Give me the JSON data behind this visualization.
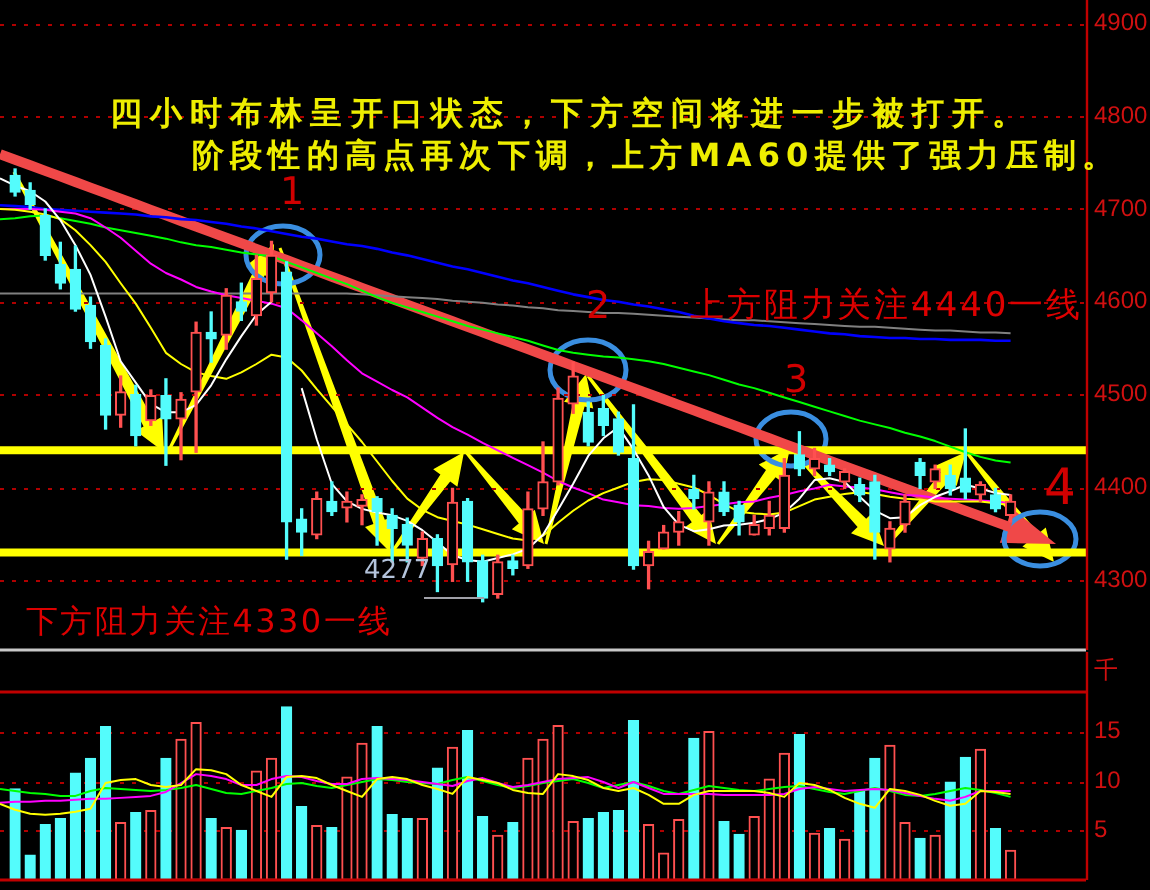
{
  "chart_data": [
    {
      "type": "candlestick",
      "categories": [
        null,
        null,
        null,
        null,
        null,
        null,
        null,
        null,
        null,
        null,
        null,
        null,
        null,
        null,
        null,
        null,
        null,
        null,
        null,
        null,
        null,
        null,
        null,
        null,
        null,
        null,
        null,
        null,
        null,
        null,
        null,
        null,
        null,
        null,
        null,
        null,
        null,
        null,
        null,
        null,
        null,
        null,
        null,
        null,
        null,
        null,
        null,
        null,
        null,
        null,
        null,
        null,
        null,
        null,
        null,
        null,
        null,
        null,
        null,
        null,
        null,
        null,
        null,
        null,
        null,
        null,
        null,
        null,
        null,
        null,
        null,
        null,
        null
      ],
      "ohlc": [
        null,
        [
          4736,
          4743,
          4714,
          4718
        ],
        [
          4720,
          4728,
          4700,
          4705
        ],
        [
          4693,
          4700,
          4645,
          4650
        ],
        [
          4640,
          4664,
          4614,
          4620
        ],
        [
          4635,
          4660,
          4590,
          4592
        ],
        [
          4596,
          4605,
          4550,
          4557
        ],
        [
          4553,
          4560,
          4463,
          4478
        ],
        [
          4478,
          4520,
          4465,
          4503
        ],
        [
          4500,
          4510,
          4445,
          4456
        ],
        [
          4472,
          4505,
          4467,
          4499
        ],
        [
          4499,
          4517,
          4424,
          4474
        ],
        [
          4474,
          4502,
          4430,
          4495
        ],
        [
          4503,
          4578,
          4438,
          4567
        ],
        [
          4567,
          4589,
          4535,
          4560
        ],
        [
          4564,
          4614,
          4549,
          4607
        ],
        [
          4600,
          4620,
          4580,
          4590
        ],
        [
          4585,
          4650,
          4575,
          4625
        ],
        [
          4610,
          4665,
          4600,
          4650
        ],
        [
          4632,
          4643,
          4323,
          4363
        ],
        [
          4366,
          4377,
          4327,
          4352
        ],
        [
          4349,
          4395,
          4345,
          4388
        ],
        [
          4385,
          4406,
          4370,
          4374
        ],
        [
          4378,
          4395,
          4363,
          4385
        ],
        [
          4380,
          4392,
          4360,
          4387
        ],
        [
          4388,
          4390,
          4338,
          4374
        ],
        [
          4370,
          4377,
          4320,
          4356
        ],
        [
          4360,
          4367,
          4320,
          4338
        ],
        [
          4324,
          4352,
          4316,
          4345
        ],
        [
          4345,
          4349,
          4288,
          4316
        ],
        [
          4317,
          4399,
          4299,
          4384
        ],
        [
          4385,
          4388,
          4299,
          4320
        ],
        [
          4321,
          4327,
          4277,
          4281
        ],
        [
          4285,
          4327,
          4281,
          4320
        ],
        [
          4321,
          4327,
          4306,
          4313
        ],
        [
          4316,
          4395,
          4313,
          4377
        ],
        [
          4377,
          4449,
          4370,
          4406
        ],
        [
          4406,
          4507,
          4403,
          4496
        ],
        [
          4490,
          4535,
          4480,
          4520
        ],
        [
          4481,
          4492,
          4445,
          4449
        ],
        [
          4485,
          4499,
          4456,
          4467
        ],
        [
          4474,
          4481,
          4435,
          4438
        ],
        [
          4431,
          4489,
          4312,
          4316
        ],
        [
          4316,
          4342,
          4291,
          4331
        ],
        [
          4334,
          4359,
          4334,
          4352
        ],
        [
          4352,
          4374,
          4338,
          4363
        ],
        [
          4398,
          4413,
          4377,
          4388
        ],
        [
          4363,
          4406,
          4338,
          4395
        ],
        [
          4395,
          4406,
          4370,
          4374
        ],
        [
          4381,
          4385,
          4349,
          4363
        ],
        [
          4349,
          4370,
          4349,
          4360
        ],
        [
          4356,
          4385,
          4349,
          4370
        ],
        [
          4356,
          4431,
          4352,
          4413
        ],
        [
          4435,
          4460,
          4413,
          4420
        ],
        [
          4420,
          4442,
          4413,
          4431
        ],
        [
          4424,
          4431,
          4413,
          4417
        ],
        [
          4406,
          4420,
          4399,
          4417
        ],
        [
          4403,
          4410,
          4385,
          4392
        ],
        [
          4406,
          4413,
          4323,
          4352
        ],
        [
          4334,
          4363,
          4320,
          4356
        ],
        [
          4360,
          4392,
          4352,
          4385
        ],
        [
          4427,
          4431,
          4399,
          4413
        ],
        [
          4406,
          4424,
          4399,
          4420
        ],
        [
          4413,
          4424,
          4392,
          4399
        ],
        [
          4410,
          4463,
          4388,
          4395
        ],
        [
          4392,
          4406,
          4385,
          4403
        ],
        [
          4392,
          4399,
          4374,
          4377
        ],
        [
          4370,
          4392,
          4363,
          4385
        ],
        null,
        null,
        null,
        null,
        null
      ],
      "colors": [
        null,
        "#54fcfc",
        "#54fcfc",
        "#54fcfc",
        "#54fcfc",
        "#54fcfc",
        "#54fcfc",
        "#54fcfc",
        "#ff5050",
        "#54fcfc",
        "#ff5050",
        "#54fcfc",
        "#ff5050",
        "#ff5050",
        "#54fcfc",
        "#ff5050",
        "#54fcfc",
        "#ff5050",
        "#ff5050",
        "#54fcfc",
        "#54fcfc",
        "#ff5050",
        "#54fcfc",
        "#ff5050",
        "#ff5050",
        "#54fcfc",
        "#54fcfc",
        "#54fcfc",
        "#ff5050",
        "#54fcfc",
        "#ff5050",
        "#54fcfc",
        "#54fcfc",
        "#ff5050",
        "#54fcfc",
        "#ff5050",
        "#ff5050",
        "#ff5050",
        "#ff5050",
        "#54fcfc",
        "#54fcfc",
        "#54fcfc",
        "#54fcfc",
        "#ff5050",
        "#ff5050",
        "#ff5050",
        "#54fcfc",
        "#ff5050",
        "#54fcfc",
        "#54fcfc",
        "#ff5050",
        "#ff5050",
        "#ff5050",
        "#54fcfc",
        "#ff5050",
        "#54fcfc",
        "#ff5050",
        "#54fcfc",
        "#54fcfc",
        "#ff5050",
        "#ff5050",
        "#54fcfc",
        "#ff5050",
        "#54fcfc",
        "#54fcfc",
        "#ff5050",
        "#54fcfc",
        "#ff5050",
        null,
        null,
        null,
        null,
        null
      ],
      "series": [
        {
          "type": "line",
          "color": "#ffffff",
          "values": [
            4733,
            4725,
            4719,
            4708,
            4688,
            4661,
            4629,
            4584,
            4536,
            4513,
            4490,
            4481,
            4481,
            4489,
            4510,
            4538,
            4563,
            4586,
            4600,
            null,
            4507,
            4452,
            4404,
            4385,
            4377,
            4373,
            4370,
            4364,
            4354,
            4341,
            4327,
            4322,
            4320,
            4324,
            4328,
            4334,
            4349,
            4376,
            4404,
            4434,
            4453,
            4465,
            4441,
            4413,
            4379,
            4360,
            4353,
            4355,
            4359,
            4360,
            4362,
            4366,
            4373,
            4388,
            4408,
            4410,
            4406,
            4390,
            4375,
            4367,
            4368,
            4381,
            4390,
            4396,
            4403,
            4399,
            4394,
            4392,
            null,
            null,
            null,
            null,
            null
          ]
        },
        {
          "type": "line",
          "color": "#ffff00",
          "values": [
            4700,
            4699,
            4697,
            4694,
            4689,
            4677,
            4661,
            4643,
            4620,
            4598,
            4572,
            4545,
            4533,
            4524,
            4520,
            4517,
            4524,
            4533,
            4543,
            4540,
            4526,
            4506,
            4487,
            4468,
            4449,
            4428,
            4407,
            4388,
            4376,
            4368,
            4364,
            4360,
            4355,
            4350,
            4345,
            4343,
            4348,
            4362,
            4375,
            4386,
            4394,
            4400,
            4406,
            4409,
            4408,
            4404,
            4400,
            4392,
            4382,
            4374,
            4372,
            4371,
            4373,
            4380,
            4387,
            4390,
            4393,
            4395,
            4393,
            4390,
            4388,
            4387,
            4385,
            4385,
            4385,
            4385,
            4383,
            4381,
            null,
            null,
            null,
            null,
            null
          ]
        },
        {
          "type": "line",
          "color": "#ff00ff",
          "values": [
            4700,
            4700,
            4700,
            4699,
            4697,
            4695,
            4690,
            4680,
            4669,
            4655,
            4641,
            4631,
            4624,
            4616,
            4611,
            4607,
            4604,
            4601,
            4598,
            4593,
            4580,
            4566,
            4552,
            4537,
            4523,
            4514,
            4505,
            4497,
            4486,
            4475,
            4465,
            4457,
            4448,
            4440,
            4432,
            4424,
            4416,
            4407,
            4400,
            4394,
            4387,
            4384,
            4381,
            4380,
            4378,
            4377,
            4378,
            4380,
            4382,
            4384,
            4385,
            4389,
            4392,
            4396,
            4399,
            4403,
            4401,
            4400,
            4398,
            4395,
            4392,
            4391,
            4389,
            4388,
            4387,
            4386,
            4385,
            4383,
            null,
            null,
            null,
            null,
            null
          ]
        },
        {
          "type": "line",
          "color": "#00ff00",
          "values": [
            4689,
            4690,
            4692,
            4693,
            4690,
            4687,
            4684,
            4680,
            4677,
            4674,
            4671,
            4668,
            4664,
            4661,
            4659,
            4656,
            4653,
            4651,
            4649,
            4643,
            4637,
            4631,
            4625,
            4619,
            4612,
            4605,
            4599,
            4594,
            4589,
            4584,
            4579,
            4574,
            4570,
            4566,
            4562,
            4558,
            4553,
            4548,
            4545,
            4543,
            4541,
            4540,
            4538,
            4536,
            4533,
            4529,
            4525,
            4521,
            4516,
            4511,
            4507,
            4502,
            4497,
            4492,
            4487,
            4482,
            4477,
            4472,
            4468,
            4464,
            4459,
            4455,
            4450,
            4444,
            4438,
            4433,
            4429,
            4427,
            null,
            null,
            null,
            null,
            null
          ]
        },
        {
          "type": "line",
          "color": "#0000ff",
          "values": [
            4704,
            4703,
            4702,
            4700,
            4699,
            4698,
            4697,
            4696,
            4695,
            4694,
            4692,
            4691,
            4689,
            4688,
            4686,
            4684,
            4681,
            4679,
            4676,
            4673,
            4670,
            4668,
            4665,
            4662,
            4660,
            4657,
            4653,
            4650,
            4646,
            4642,
            4638,
            4635,
            4631,
            4627,
            4623,
            4620,
            4616,
            4612,
            4608,
            4605,
            4602,
            4600,
            4597,
            4595,
            4592,
            4589,
            4585,
            4582,
            4579,
            4577,
            4575,
            4574,
            4572,
            4570,
            4568,
            4566,
            4565,
            4563,
            4562,
            4561,
            4561,
            4560,
            4560,
            4559,
            4559,
            4559,
            4558,
            4558,
            null,
            null,
            null,
            null,
            null
          ]
        },
        {
          "type": "line",
          "color": "#808080",
          "values": [
            4609,
            4609,
            4609,
            4609,
            4609,
            4609,
            4609,
            4609,
            4609,
            4609,
            4609,
            4609,
            4609,
            4609,
            4609,
            4609,
            4609,
            4609,
            4609,
            4609,
            4609,
            4609,
            4609,
            4609,
            4608,
            4607,
            4606,
            4605,
            4604,
            4603,
            4601,
            4600,
            4599,
            4597,
            4596,
            4594,
            4593,
            4591,
            4590,
            4589,
            4588,
            4588,
            4587,
            4586,
            4585,
            4584,
            4583,
            4582,
            4581,
            4580,
            4580,
            4579,
            4578,
            4577,
            4576,
            4575,
            4574,
            4573,
            4573,
            4572,
            4571,
            4570,
            4569,
            4569,
            4568,
            4567,
            4567,
            4566,
            null,
            null,
            null,
            null,
            null
          ]
        },
        {
          "type": "line",
          "color": "#f04848",
          "values": [
            4759,
            4753,
            4747,
            4741,
            4735,
            4729,
            4723,
            4717,
            4711,
            4705,
            4699,
            4693,
            4687,
            4681,
            4675,
            4669,
            4663,
            4657,
            4651,
            4645,
            4639,
            4633,
            4627,
            4621,
            4615,
            4609,
            4603,
            4597,
            4591,
            4585,
            4579,
            4573,
            4567,
            4561,
            4555,
            4549,
            4543,
            4537,
            4531,
            4525,
            4519,
            4513,
            4507,
            4501,
            4495,
            4489,
            4483,
            4477,
            4471,
            4465,
            4459,
            4453,
            4447,
            4441,
            4435,
            4429,
            4423,
            4417,
            4411,
            4405,
            4399,
            4393,
            4387,
            4381,
            4375,
            4369,
            4363,
            4357,
            null,
            null,
            null,
            null,
            null
          ]
        }
      ],
      "ylim": [
        4225,
        4925
      ],
      "yticks": [
        4300,
        4400,
        4500,
        4600,
        4700,
        4800,
        4900
      ],
      "grid": "y",
      "tick_labels": "y",
      "ref_lines": [
        {
          "axis": "y",
          "value": 4440,
          "color": "#ffff00"
        },
        {
          "axis": "y",
          "value": 4330,
          "color": "#ffff00"
        }
      ],
      "annotations": [
        "四小时布林呈开口状态，下方空间将进一步被打开。",
        "阶段性的高点再次下调，上方MA60提供了强力压制。",
        "1",
        "2",
        "3",
        "4",
        "上方阻力关注4440一线",
        "下方阻力关注4330一线",
        "4277"
      ]
    },
    {
      "type": "bar",
      "categories": [
        null,
        null,
        null,
        null,
        null,
        null,
        null,
        null,
        null,
        null,
        null,
        null,
        null,
        null,
        null,
        null,
        null,
        null,
        null,
        null,
        null,
        null,
        null,
        null,
        null,
        null,
        null,
        null,
        null,
        null,
        null,
        null,
        null,
        null,
        null,
        null,
        null,
        null,
        null,
        null,
        null,
        null,
        null,
        null,
        null,
        null,
        null,
        null,
        null,
        null,
        null,
        null,
        null,
        null,
        null,
        null,
        null,
        null,
        null,
        null,
        null,
        null,
        null,
        null,
        null,
        null,
        null,
        null,
        null,
        null,
        null,
        null,
        null
      ],
      "series": [
        {
          "type": "bar",
          "colors": [
            null,
            "#54fcfc",
            "#54fcfc",
            "#54fcfc",
            "#54fcfc",
            "#54fcfc",
            "#54fcfc",
            "#54fcfc",
            "#ff5050",
            "#54fcfc",
            "#ff5050",
            "#54fcfc",
            "#ff5050",
            "#ff5050",
            "#54fcfc",
            "#ff5050",
            "#54fcfc",
            "#ff5050",
            "#ff5050",
            "#54fcfc",
            "#54fcfc",
            "#ff5050",
            "#54fcfc",
            "#ff5050",
            "#ff5050",
            "#54fcfc",
            "#54fcfc",
            "#54fcfc",
            "#ff5050",
            "#54fcfc",
            "#ff5050",
            "#54fcfc",
            "#54fcfc",
            "#ff5050",
            "#54fcfc",
            "#ff5050",
            "#ff5050",
            "#ff5050",
            "#ff5050",
            "#54fcfc",
            "#54fcfc",
            "#54fcfc",
            "#54fcfc",
            "#ff5050",
            "#ff5050",
            "#ff5050",
            "#54fcfc",
            "#ff5050",
            "#54fcfc",
            "#54fcfc",
            "#ff5050",
            "#ff5050",
            "#ff5050",
            "#54fcfc",
            "#ff5050",
            "#54fcfc",
            "#ff5050",
            "#54fcfc",
            "#54fcfc",
            "#ff5050",
            "#ff5050",
            "#54fcfc",
            "#ff5050",
            "#54fcfc",
            "#54fcfc",
            "#ff5050",
            "#54fcfc",
            "#ff5050",
            null,
            null,
            null,
            null,
            null
          ],
          "values": [
            null,
            9.2,
            2.5,
            5.6,
            6.2,
            10.8,
            12.3,
            15.5,
            5.8,
            6.8,
            7.0,
            12.3,
            14.2,
            15.9,
            6.2,
            5.3,
            5.0,
            11.0,
            12.3,
            17.5,
            7.4,
            5.5,
            5.3,
            10.4,
            13.8,
            15.5,
            6.6,
            6.2,
            6.2,
            11.3,
            13.4,
            15.1,
            6.4,
            4.5,
            5.8,
            12.3,
            14.2,
            15.6,
            5.9,
            6.2,
            6.8,
            7.0,
            16.1,
            5.6,
            2.7,
            6.1,
            14.3,
            15.0,
            5.9,
            4.6,
            6.4,
            10.2,
            12.8,
            14.7,
            4.7,
            5.2,
            4.1,
            9.0,
            12.3,
            13.6,
            5.8,
            4.2,
            4.5,
            9.9,
            12.4,
            13.2,
            5.2,
            3.0,
            null,
            null,
            null,
            null,
            null
          ]
        },
        {
          "type": "line",
          "color": "#ffff00",
          "values": [
            7.7,
            7.1,
            6.7,
            6.6,
            6.7,
            6.9,
            7.2,
            9.8,
            10.1,
            10.2,
            9.6,
            9.4,
            9.6,
            11.2,
            11.1,
            10.7,
            9.6,
            9.0,
            8.4,
            10.4,
            10.5,
            10.3,
            9.6,
            9.0,
            8.4,
            10.2,
            10.4,
            10.2,
            9.6,
            9.2,
            8.7,
            10.4,
            10.1,
            9.8,
            9.1,
            8.8,
            8.7,
            10.7,
            10.5,
            10.1,
            9.3,
            9.0,
            9.3,
            8.6,
            7.7,
            7.7,
            8.6,
            9.0,
            9.0,
            9.0,
            9.0,
            8.8,
            8.4,
            9.8,
            9.6,
            9.1,
            8.3,
            7.7,
            7.3,
            9.2,
            9.0,
            8.6,
            8.0,
            7.5,
            7.7,
            9.0,
            8.9,
            8.7,
            null,
            null,
            null,
            null,
            null
          ]
        },
        {
          "type": "line",
          "color": "#ff00ff",
          "values": [
            7.8,
            7.9,
            7.9,
            8.0,
            8.0,
            8.1,
            8.2,
            8.2,
            8.3,
            8.4,
            8.5,
            8.9,
            9.8,
            10.7,
            10.5,
            10.2,
            9.6,
            9.6,
            10.2,
            10.5,
            10.4,
            10.0,
            9.7,
            9.7,
            10.2,
            10.3,
            10.2,
            10.1,
            9.9,
            9.7,
            9.5,
            10.0,
            10.3,
            9.8,
            9.4,
            9.6,
            9.9,
            10.2,
            10.3,
            10.4,
            9.9,
            9.3,
            9.9,
            9.3,
            8.7,
            8.7,
            8.7,
            8.7,
            8.6,
            8.6,
            8.6,
            8.6,
            8.7,
            9.2,
            9.4,
            9.2,
            9.0,
            9.1,
            9.2,
            9.1,
            8.8,
            8.5,
            8.2,
            8.0,
            8.4,
            9.0,
            9.0,
            9.0,
            null,
            null,
            null,
            null,
            null
          ]
        },
        {
          "type": "line",
          "color": "#00ff00",
          "values": [
            9.2,
            9.0,
            8.8,
            8.7,
            8.5,
            8.5,
            9.0,
            9.3,
            9.2,
            9.1,
            9.0,
            9.1,
            9.3,
            9.6,
            9.2,
            8.8,
            8.7,
            9.0,
            9.3,
            9.7,
            9.8,
            9.5,
            9.3,
            9.6,
            9.9,
            10.2,
            10.1,
            9.9,
            9.8,
            9.7,
            10.1,
            10.4,
            10.0,
            9.6,
            9.3,
            9.5,
            9.8,
            10.0,
            10.2,
            9.8,
            9.3,
            9.6,
            9.9,
            9.5,
            9.0,
            8.7,
            9.1,
            9.5,
            9.3,
            9.1,
            9.0,
            9.2,
            9.4,
            9.5,
            9.2,
            8.9,
            8.7,
            9.0,
            9.3,
            9.0,
            8.6,
            8.5,
            8.7,
            9.0,
            9.3,
            9.1,
            8.8,
            8.4,
            null,
            null,
            null,
            null,
            null
          ]
        }
      ],
      "ylim": [
        0,
        19
      ],
      "yticks": [
        5,
        10,
        15
      ],
      "ylabel": "千",
      "grid": "y",
      "tick_labels": "y"
    }
  ]
}
